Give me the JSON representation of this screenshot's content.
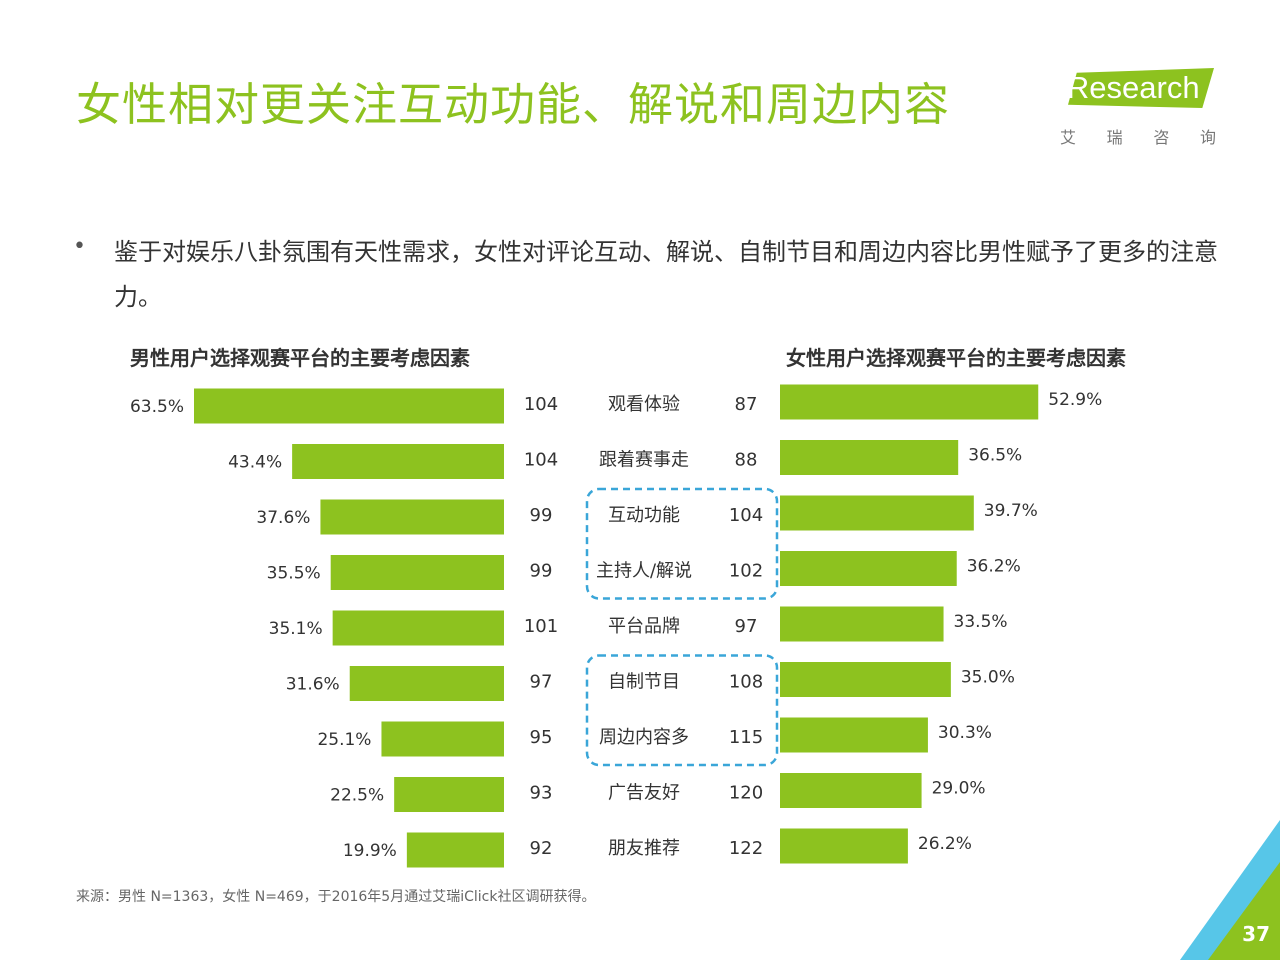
{
  "title": "女性相对更关注互动功能、解说和周边内容",
  "logo": {
    "text": "iResearch",
    "sub": [
      "艾",
      "瑞",
      "咨",
      "询"
    ]
  },
  "bullet": "鉴于对娱乐八卦氛围有天性需求，女性对评论互动、解说、自制节目和周边内容比男性赋予了更多的注意力。",
  "source": "来源：男性 N=1363，女性 N=469，于2016年5月通过艾瑞iClick社区调研获得。",
  "page_number": "37",
  "colors": {
    "accent": "#8dc21f",
    "highlight": "#3aa6d8"
  },
  "chart_data": [
    {
      "type": "bar",
      "title": "男性用户选择观赛平台的主要考虑因素",
      "categories": [
        "观看体验",
        "跟着赛事走",
        "互动功能",
        "主持人/解说",
        "平台品牌",
        "自制节目",
        "周边内容多",
        "广告友好",
        "朋友推荐"
      ],
      "values": [
        63.5,
        43.4,
        37.6,
        35.5,
        35.1,
        31.6,
        25.1,
        22.5,
        19.9
      ],
      "labels": [
        "63.5%",
        "43.4%",
        "37.6%",
        "35.5%",
        "35.1%",
        "31.6%",
        "25.1%",
        "22.5%",
        "19.9%"
      ],
      "index": [
        "104",
        "104",
        "99",
        "99",
        "101",
        "97",
        "95",
        "93",
        "92"
      ]
    },
    {
      "type": "bar",
      "title": "女性用户选择观赛平台的主要考虑因素",
      "categories": [
        "观看体验",
        "跟着赛事走",
        "互动功能",
        "主持人/解说",
        "平台品牌",
        "自制节目",
        "周边内容多",
        "广告友好",
        "朋友推荐"
      ],
      "values": [
        52.9,
        36.5,
        39.7,
        36.2,
        33.5,
        35.0,
        30.3,
        29.0,
        26.2
      ],
      "labels": [
        "52.9%",
        "36.5%",
        "39.7%",
        "36.2%",
        "33.5%",
        "35.0%",
        "30.3%",
        "29.0%",
        "26.2%"
      ],
      "index": [
        "87",
        "88",
        "104",
        "102",
        "97",
        "108",
        "115",
        "120",
        "122"
      ]
    }
  ],
  "highlight_groups": [
    [
      2,
      3
    ],
    [
      5,
      6
    ]
  ]
}
